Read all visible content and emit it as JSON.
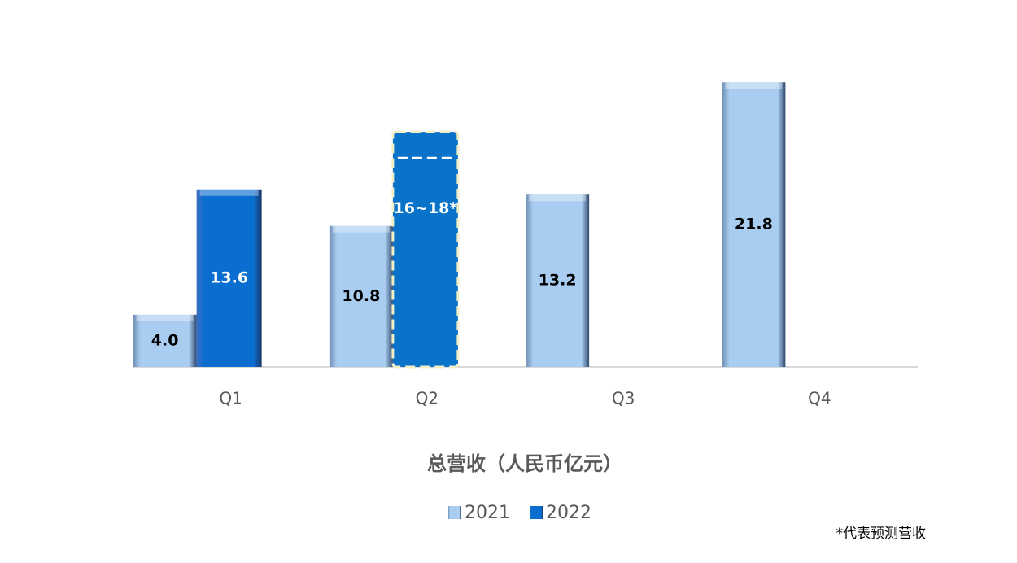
{
  "chart_data": {
    "type": "bar",
    "title": "总营收（人民币亿元）",
    "categories": [
      "Q1",
      "Q2",
      "Q3",
      "Q4"
    ],
    "series": [
      {
        "name": "2021",
        "color": "#a9cdf0",
        "values": [
          4.0,
          10.8,
          13.2,
          21.8
        ],
        "value_labels": [
          "4.0",
          "10.8",
          "13.2",
          "21.8"
        ]
      },
      {
        "name": "2022",
        "color": "#0873c9",
        "values": [
          13.6,
          18,
          null,
          null
        ],
        "lows": [
          null,
          16,
          null,
          null
        ],
        "value_labels": [
          "13.6",
          "16~18*",
          null,
          null
        ]
      }
    ],
    "ylim": [
      0,
      22
    ],
    "footnote": "*代表预测营收"
  }
}
